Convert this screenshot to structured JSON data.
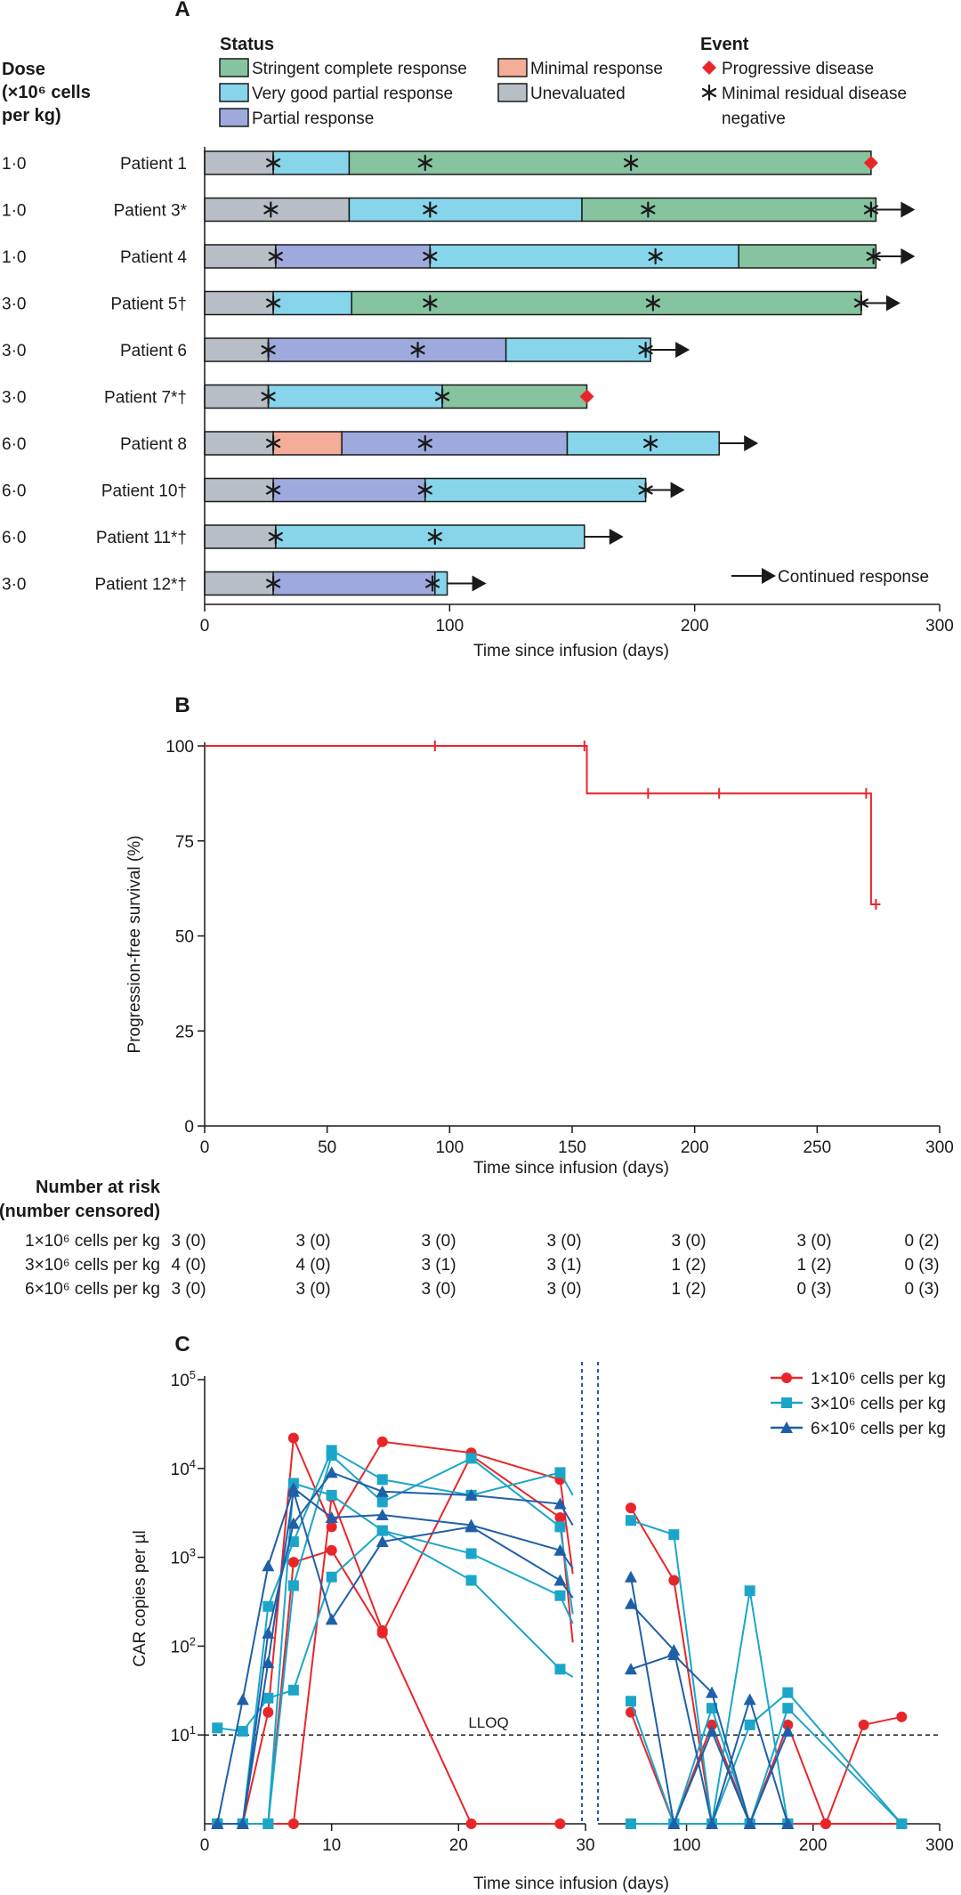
{
  "panelA": {
    "letter": "A",
    "dose_header": [
      "Dose",
      "(×10⁶ cells",
      "per kg)"
    ],
    "status_title": "Status",
    "status_items": [
      {
        "label": "Stringent complete response",
        "color": "#86c39f"
      },
      {
        "label": "Very good partial response",
        "color": "#86d5ea"
      },
      {
        "label": "Partial response",
        "color": "#9ea9de"
      },
      {
        "label": "Minimal response",
        "color": "#f4ad98"
      },
      {
        "label": "Unevaluated",
        "color": "#b8bec6"
      }
    ],
    "event_title": "Event",
    "event_items": [
      "Progressive disease",
      "Minimal residual disease",
      "negative"
    ],
    "continued_label": "Continued response",
    "xlabel": "Time since infusion (days)",
    "xticks": [
      "0",
      "100",
      "200",
      "300"
    ]
  },
  "chart_data": [
    {
      "type": "bar",
      "title": "A",
      "xlabel": "Time since infusion (days)",
      "xlim": [
        0,
        300
      ],
      "patients": [
        {
          "dose": "1·0",
          "name": "Patient 1",
          "segments": [
            [
              "Unevaluated",
              0,
              28
            ],
            [
              "Very good partial response",
              28,
              59
            ],
            [
              "Stringent complete response",
              59,
              272
            ]
          ],
          "mrd": [
            28,
            90,
            174
          ],
          "pd": 272,
          "continued": false
        },
        {
          "dose": "1·0",
          "name": "Patient 3*",
          "segments": [
            [
              "Unevaluated",
              0,
              59
            ],
            [
              "Very good partial response",
              59,
              154
            ],
            [
              "Stringent complete response",
              154,
              274
            ]
          ],
          "mrd": [
            27,
            92,
            181,
            272
          ],
          "pd": null,
          "continued": true
        },
        {
          "dose": "1·0",
          "name": "Patient 4",
          "segments": [
            [
              "Unevaluated",
              0,
              29
            ],
            [
              "Partial response",
              29,
              92
            ],
            [
              "Very good partial response",
              92,
              218
            ],
            [
              "Stringent complete response",
              218,
              274
            ]
          ],
          "mrd": [
            29,
            92,
            184,
            273
          ],
          "pd": null,
          "continued": true
        },
        {
          "dose": "3·0",
          "name": "Patient 5†",
          "segments": [
            [
              "Unevaluated",
              0,
              28
            ],
            [
              "Very good partial response",
              28,
              60
            ],
            [
              "Stringent complete response",
              60,
              268
            ]
          ],
          "mrd": [
            28,
            92,
            183,
            268
          ],
          "pd": null,
          "continued": true
        },
        {
          "dose": "3·0",
          "name": "Patient 6",
          "segments": [
            [
              "Unevaluated",
              0,
              26
            ],
            [
              "Partial response",
              26,
              123
            ],
            [
              "Very good partial response",
              123,
              182
            ]
          ],
          "mrd": [
            26,
            87,
            180
          ],
          "pd": null,
          "continued": true
        },
        {
          "dose": "3·0",
          "name": "Patient 7*†",
          "segments": [
            [
              "Unevaluated",
              0,
              26
            ],
            [
              "Very good partial response",
              26,
              97
            ],
            [
              "Stringent complete response",
              97,
              156
            ]
          ],
          "mrd": [
            26,
            97
          ],
          "pd": 156,
          "continued": false
        },
        {
          "dose": "6·0",
          "name": "Patient 8",
          "segments": [
            [
              "Unevaluated",
              0,
              28
            ],
            [
              "Minimal response",
              28,
              56
            ],
            [
              "Partial response",
              56,
              148
            ],
            [
              "Very good partial response",
              148,
              210
            ]
          ],
          "mrd": [
            28,
            90,
            182
          ],
          "pd": null,
          "continued": true
        },
        {
          "dose": "6·0",
          "name": "Patient 10†",
          "segments": [
            [
              "Unevaluated",
              0,
              28
            ],
            [
              "Partial response",
              28,
              90
            ],
            [
              "Very good partial response",
              90,
              180
            ]
          ],
          "mrd": [
            28,
            90,
            180
          ],
          "pd": null,
          "continued": true
        },
        {
          "dose": "6·0",
          "name": "Patient 11*†",
          "segments": [
            [
              "Unevaluated",
              0,
              29
            ],
            [
              "Very good partial response",
              29,
              155
            ]
          ],
          "mrd": [
            29,
            94
          ],
          "pd": null,
          "continued": true
        },
        {
          "dose": "3·0",
          "name": "Patient 12*†",
          "segments": [
            [
              "Unevaluated",
              0,
              28
            ],
            [
              "Partial response",
              28,
              94
            ],
            [
              "Very good partial response",
              94,
              99
            ]
          ],
          "mrd": [
            28,
            93
          ],
          "pd": null,
          "continued": true
        }
      ]
    },
    {
      "type": "line",
      "title": "B",
      "xlabel": "Time since infusion (days)",
      "ylabel": "Progression-free survival (%)",
      "xlim": [
        0,
        300
      ],
      "ylim": [
        0,
        100
      ],
      "xticks": [
        0,
        50,
        100,
        150,
        200,
        250,
        300
      ],
      "yticks": [
        0,
        25,
        50,
        75,
        100
      ],
      "color": "#e8262a",
      "steps": [
        [
          0,
          100
        ],
        [
          156,
          100
        ],
        [
          156,
          87.5
        ],
        [
          272,
          87.5
        ],
        [
          272,
          58.3
        ],
        [
          274,
          58.3
        ]
      ],
      "censored": [
        [
          94,
          100
        ],
        [
          155,
          100
        ],
        [
          181,
          87.5
        ],
        [
          210,
          87.5
        ],
        [
          270,
          87.5
        ],
        [
          274,
          58.3
        ]
      ],
      "risk_table": {
        "title": [
          "Number at risk",
          "(number censored)"
        ],
        "rows": [
          {
            "label": "1×10⁶ cells per kg",
            "values": [
              "3 (0)",
              "3 (0)",
              "3 (0)",
              "3 (0)",
              "3 (0)",
              "3 (0)",
              "0 (2)"
            ]
          },
          {
            "label": "3×10⁶ cells per kg",
            "values": [
              "4 (0)",
              "4 (0)",
              "3 (1)",
              "3 (1)",
              "1 (2)",
              "1 (2)",
              "0 (3)"
            ]
          },
          {
            "label": "6×10⁶ cells per kg",
            "values": [
              "3 (0)",
              "3 (0)",
              "3 (0)",
              "3 (0)",
              "1 (2)",
              "0 (3)",
              "0 (3)"
            ]
          }
        ]
      }
    },
    {
      "type": "line",
      "title": "C",
      "xlabel": "Time since infusion (days)",
      "ylabel": "CAR copies per µl",
      "y_scale": "log",
      "ylim": [
        1,
        100000
      ],
      "x_scale": "broken: linear 0–30, then 30–300",
      "xticks_left": [
        "0",
        "10",
        "20",
        "30"
      ],
      "xticks_right": [
        "100",
        "200",
        "300"
      ],
      "lloq_label": "LLOQ",
      "lloq_value": 10,
      "legend": [
        {
          "label": "1×10⁶ cells per kg",
          "color": "#e8262a",
          "marker": "circle"
        },
        {
          "label": "3×10⁶ cells per kg",
          "color": "#1ba6c9",
          "marker": "square"
        },
        {
          "label": "6×10⁶ cells per kg",
          "color": "#1f5fa8",
          "marker": "triangle"
        }
      ],
      "series": [
        {
          "group": 0,
          "points": [
            [
              1,
              1
            ],
            [
              3,
              1
            ],
            [
              5,
              18
            ],
            [
              7,
              22000
            ],
            [
              10,
              2200
            ],
            [
              14,
              20000
            ],
            [
              21,
              15000
            ],
            [
              28,
              7500
            ],
            [
              29,
              650
            ],
            [
              56,
              3600
            ],
            [
              90,
              550
            ],
            [
              120,
              1
            ],
            [
              150,
              1
            ],
            [
              180,
              13
            ],
            [
              210,
              1
            ],
            [
              240,
              13
            ],
            [
              270,
              16
            ]
          ]
        },
        {
          "group": 0,
          "points": [
            [
              1,
              1
            ],
            [
              3,
              1
            ],
            [
              5,
              1
            ],
            [
              7,
              880
            ],
            [
              10,
              1200
            ],
            [
              14,
              140
            ],
            [
              21,
              14000
            ],
            [
              28,
              2800
            ],
            [
              29,
              110
            ],
            [
              56,
              18
            ],
            [
              90,
              1
            ],
            [
              120,
              1
            ],
            [
              150,
              1
            ],
            [
              180,
              1
            ],
            [
              210,
              1
            ],
            [
              270,
              1
            ]
          ]
        },
        {
          "group": 0,
          "points": [
            [
              1,
              1
            ],
            [
              3,
              1
            ],
            [
              5,
              1
            ],
            [
              7,
              1
            ],
            [
              10,
              4800
            ],
            [
              14,
              150
            ],
            [
              21,
              1
            ],
            [
              28,
              1
            ],
            [
              56,
              1
            ],
            [
              90,
              1
            ],
            [
              120,
              13
            ],
            [
              150,
              1
            ],
            [
              180,
              1
            ],
            [
              270,
              1
            ]
          ]
        },
        {
          "group": 1,
          "points": [
            [
              1,
              12
            ],
            [
              3,
              11
            ],
            [
              5,
              26
            ],
            [
              7,
              32
            ],
            [
              10,
              600
            ],
            [
              14,
              2000
            ],
            [
              21,
              1100
            ],
            [
              28,
              370
            ],
            [
              29,
              180
            ],
            [
              56,
              24
            ],
            [
              90,
              1
            ],
            [
              120,
              20
            ],
            [
              150,
              1
            ],
            [
              180,
              20
            ],
            [
              270,
              1
            ]
          ]
        },
        {
          "group": 1,
          "points": [
            [
              1,
              1
            ],
            [
              3,
              1
            ],
            [
              5,
              280
            ],
            [
              7,
              1500
            ],
            [
              10,
              16000
            ],
            [
              14,
              7500
            ],
            [
              21,
              5000
            ],
            [
              28,
              9000
            ],
            [
              29,
              5000
            ],
            [
              56,
              2600
            ],
            [
              90,
              1800
            ],
            [
              120,
              1
            ],
            [
              150,
              420
            ],
            [
              180,
              1
            ]
          ]
        },
        {
          "group": 1,
          "points": [
            [
              1,
              1
            ],
            [
              3,
              1
            ],
            [
              5,
              1
            ],
            [
              7,
              6800
            ],
            [
              10,
              5000
            ],
            [
              14,
              2000
            ],
            [
              21,
              550
            ],
            [
              28,
              55
            ],
            [
              29,
              45
            ],
            [
              56,
              1
            ],
            [
              90,
              1
            ],
            [
              120,
              1
            ],
            [
              150,
              13
            ],
            [
              180,
              30
            ],
            [
              270,
              1
            ]
          ]
        },
        {
          "group": 1,
          "points": [
            [
              1,
              1
            ],
            [
              3,
              1
            ],
            [
              5,
              1
            ],
            [
              7,
              480
            ],
            [
              10,
              14000
            ],
            [
              14,
              4200
            ],
            [
              21,
              13000
            ],
            [
              28,
              2200
            ],
            [
              29,
              230
            ],
            [
              56,
              1
            ],
            [
              90,
              1
            ],
            [
              120,
              1
            ],
            [
              150,
              1
            ],
            [
              180,
              1
            ]
          ]
        },
        {
          "group": 2,
          "points": [
            [
              1,
              1
            ],
            [
              3,
              25
            ],
            [
              5,
              800
            ],
            [
              7,
              6000
            ],
            [
              10,
              2800
            ],
            [
              14,
              3000
            ],
            [
              21,
              2300
            ],
            [
              28,
              1200
            ],
            [
              29,
              750
            ],
            [
              56,
              55
            ],
            [
              90,
              80
            ],
            [
              120,
              30
            ],
            [
              150,
              1
            ],
            [
              180,
              1
            ]
          ]
        },
        {
          "group": 2,
          "points": [
            [
              1,
              1
            ],
            [
              3,
              1
            ],
            [
              5,
              140
            ],
            [
              7,
              2400
            ],
            [
              10,
              9000
            ],
            [
              14,
              5500
            ],
            [
              21,
              5000
            ],
            [
              28,
              4000
            ],
            [
              29,
              2300
            ],
            [
              56,
              600
            ],
            [
              90,
              1
            ],
            [
              120,
              11
            ],
            [
              150,
              1
            ],
            [
              180,
              11
            ]
          ]
        },
        {
          "group": 2,
          "points": [
            [
              1,
              1
            ],
            [
              3,
              1
            ],
            [
              5,
              65
            ],
            [
              7,
              5500
            ],
            [
              10,
              200
            ],
            [
              14,
              1500
            ],
            [
              21,
              2200
            ],
            [
              28,
              550
            ],
            [
              29,
              350
            ],
            [
              56,
              300
            ],
            [
              90,
              90
            ],
            [
              120,
              1
            ],
            [
              150,
              25
            ],
            [
              180,
              1
            ]
          ]
        }
      ]
    }
  ]
}
